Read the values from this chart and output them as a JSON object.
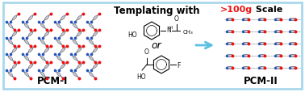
{
  "background_color": "#ffffff",
  "border_color": "#a8d8ea",
  "border_linewidth": 2.0,
  "title_text": "Templating with",
  "title_fontsize": 8.5,
  "title_fontweight": "bold",
  "or_text": "or",
  "or_fontsize": 9,
  "pcm1_label": "PCM-I",
  "pcm2_label": "PCM-II",
  "scale_red": ">100g",
  "scale_black": " Scale",
  "scale_fontsize": 8.0,
  "scale_fontweight": "bold",
  "arrow_color": "#5bbfdf",
  "label_fontsize": 8.5,
  "label_fontweight": "bold",
  "red_color": "#ee1111",
  "blue_color": "#2255bb",
  "black_color": "#000000",
  "mol_gray": "#aaaaaa",
  "mol_dark": "#444444"
}
